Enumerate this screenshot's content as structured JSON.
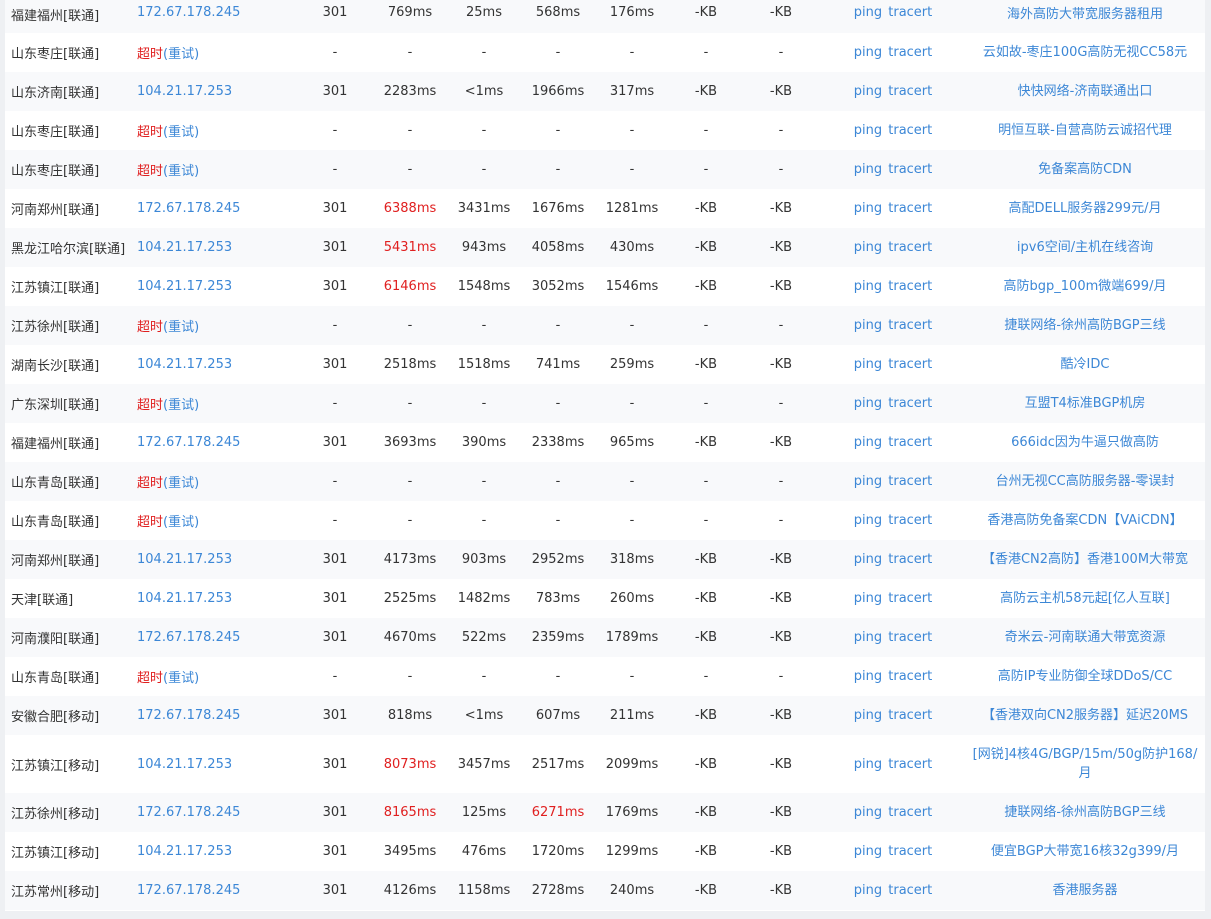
{
  "ping_label": "ping",
  "tracert_label": "tracert",
  "timeout_label": "超时",
  "retry_label": "(重试)",
  "dash": "-",
  "rows": [
    {
      "loc": "福建福州[联通]",
      "ip": "172.67.178.245",
      "code": "301",
      "t1": "769ms",
      "t2": "25ms",
      "t3": "568ms",
      "t4": "176ms",
      "s1": "-KB",
      "s2": "-KB",
      "ad": "海外高防大带宽服务器租用",
      "t1red": false,
      "t3red": false
    },
    {
      "loc": "山东枣庄[联通]",
      "timeout": true,
      "ad": "云如故-枣庄100G高防无视CC58元"
    },
    {
      "loc": "山东济南[联通]",
      "ip": "104.21.17.253",
      "code": "301",
      "t1": "2283ms",
      "t2": "<1ms",
      "t3": "1966ms",
      "t4": "317ms",
      "s1": "-KB",
      "s2": "-KB",
      "ad": "快快网络-济南联通出口",
      "t1red": false,
      "t3red": false
    },
    {
      "loc": "山东枣庄[联通]",
      "timeout": true,
      "ad": "明恒互联-自营高防云诚招代理"
    },
    {
      "loc": "山东枣庄[联通]",
      "timeout": true,
      "ad": "免备案高防CDN"
    },
    {
      "loc": "河南郑州[联通]",
      "ip": "172.67.178.245",
      "code": "301",
      "t1": "6388ms",
      "t2": "3431ms",
      "t3": "1676ms",
      "t4": "1281ms",
      "s1": "-KB",
      "s2": "-KB",
      "ad": "高配DELL服务器299元/月",
      "t1red": true,
      "t3red": false
    },
    {
      "loc": "黑龙江哈尔滨[联通]",
      "ip": "104.21.17.253",
      "code": "301",
      "t1": "5431ms",
      "t2": "943ms",
      "t3": "4058ms",
      "t4": "430ms",
      "s1": "-KB",
      "s2": "-KB",
      "ad": "ipv6空间/主机在线咨询",
      "t1red": true,
      "t3red": false
    },
    {
      "loc": "江苏镇江[联通]",
      "ip": "104.21.17.253",
      "code": "301",
      "t1": "6146ms",
      "t2": "1548ms",
      "t3": "3052ms",
      "t4": "1546ms",
      "s1": "-KB",
      "s2": "-KB",
      "ad": "高防bgp_100m微端699/月",
      "t1red": true,
      "t3red": false
    },
    {
      "loc": "江苏徐州[联通]",
      "timeout": true,
      "ad": "捷联网络-徐州高防BGP三线"
    },
    {
      "loc": "湖南长沙[联通]",
      "ip": "104.21.17.253",
      "code": "301",
      "t1": "2518ms",
      "t2": "1518ms",
      "t3": "741ms",
      "t4": "259ms",
      "s1": "-KB",
      "s2": "-KB",
      "ad": "酷冷IDC",
      "t1red": false,
      "t3red": false
    },
    {
      "loc": "广东深圳[联通]",
      "timeout": true,
      "ad": "互盟T4标准BGP机房"
    },
    {
      "loc": "福建福州[联通]",
      "ip": "172.67.178.245",
      "code": "301",
      "t1": "3693ms",
      "t2": "390ms",
      "t3": "2338ms",
      "t4": "965ms",
      "s1": "-KB",
      "s2": "-KB",
      "ad": "666idc因为牛逼只做高防",
      "t1red": false,
      "t3red": false
    },
    {
      "loc": "山东青岛[联通]",
      "timeout": true,
      "ad": "台州无视CC高防服务器-零误封"
    },
    {
      "loc": "山东青岛[联通]",
      "timeout": true,
      "ad": "香港高防免备案CDN【VAiCDN】"
    },
    {
      "loc": "河南郑州[联通]",
      "ip": "104.21.17.253",
      "code": "301",
      "t1": "4173ms",
      "t2": "903ms",
      "t3": "2952ms",
      "t4": "318ms",
      "s1": "-KB",
      "s2": "-KB",
      "ad": "【香港CN2高防】香港100M大带宽",
      "t1red": false,
      "t3red": false
    },
    {
      "loc": "天津[联通]",
      "ip": "104.21.17.253",
      "code": "301",
      "t1": "2525ms",
      "t2": "1482ms",
      "t3": "783ms",
      "t4": "260ms",
      "s1": "-KB",
      "s2": "-KB",
      "ad": "高防云主机58元起[亿人互联]",
      "t1red": false,
      "t3red": false
    },
    {
      "loc": "河南濮阳[联通]",
      "ip": "172.67.178.245",
      "code": "301",
      "t1": "4670ms",
      "t2": "522ms",
      "t3": "2359ms",
      "t4": "1789ms",
      "s1": "-KB",
      "s2": "-KB",
      "ad": "奇米云-河南联通大带宽资源",
      "t1red": false,
      "t3red": false
    },
    {
      "loc": "山东青岛[联通]",
      "timeout": true,
      "ad": "高防IP专业防御全球DDoS/CC"
    },
    {
      "loc": "安徽合肥[移动]",
      "ip": "172.67.178.245",
      "code": "301",
      "t1": "818ms",
      "t2": "<1ms",
      "t3": "607ms",
      "t4": "211ms",
      "s1": "-KB",
      "s2": "-KB",
      "ad": "【香港双向CN2服务器】延迟20MS",
      "t1red": false,
      "t3red": false
    },
    {
      "loc": "江苏镇江[移动]",
      "ip": "104.21.17.253",
      "code": "301",
      "t1": "8073ms",
      "t2": "3457ms",
      "t3": "2517ms",
      "t4": "2099ms",
      "s1": "-KB",
      "s2": "-KB",
      "ad": "[网锐]4核4G/BGP/15m/50g防护168/月",
      "t1red": true,
      "t3red": false,
      "tall": true
    },
    {
      "loc": "江苏徐州[移动]",
      "ip": "172.67.178.245",
      "code": "301",
      "t1": "8165ms",
      "t2": "125ms",
      "t3": "6271ms",
      "t4": "1769ms",
      "s1": "-KB",
      "s2": "-KB",
      "ad": "捷联网络-徐州高防BGP三线",
      "t1red": true,
      "t3red": true
    },
    {
      "loc": "江苏镇江[移动]",
      "ip": "104.21.17.253",
      "code": "301",
      "t1": "3495ms",
      "t2": "476ms",
      "t3": "1720ms",
      "t4": "1299ms",
      "s1": "-KB",
      "s2": "-KB",
      "ad": "便宜BGP大带宽16核32g399/月",
      "t1red": false,
      "t3red": false
    },
    {
      "loc": "江苏常州[移动]",
      "ip": "172.67.178.245",
      "code": "301",
      "t1": "4126ms",
      "t2": "1158ms",
      "t3": "2728ms",
      "t4": "240ms",
      "s1": "-KB",
      "s2": "-KB",
      "ad": "香港服务器",
      "t1red": false,
      "t3red": false
    }
  ]
}
